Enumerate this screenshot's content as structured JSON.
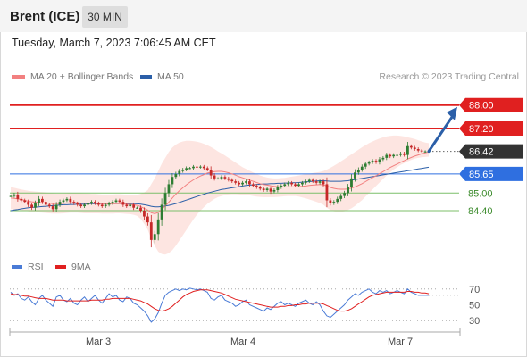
{
  "header": {
    "instrument": "Brent (ICE)",
    "timeframe": "30 MIN",
    "timestamp": "Tuesday, March 7, 2023 7:06:45 AM CET"
  },
  "legend": {
    "ma20": "MA 20 + Bollinger Bands",
    "ma50": "MA 50",
    "rsi": "RSI",
    "rsi_ma": "9MA",
    "copyright": "Research © 2023 Trading Central"
  },
  "colors": {
    "up": "#2e7d32",
    "down": "#c62828",
    "ma20": "#f28080",
    "ma50": "#2b5fa8",
    "resistance": "#e02020",
    "pivot": "#2f6fe0",
    "support": "#7cbf6a",
    "current": "#333333",
    "bands": "#fde0dc",
    "arrow": "#2b5fa8",
    "rsi": "#4a7bd6",
    "rsi_ma": "#e02020"
  },
  "chart_data": [
    {
      "type": "candlestick",
      "title": "",
      "ylim": [
        83.0,
        88.6
      ],
      "x_ticks": [
        "Mar 3",
        "Mar 4",
        "Mar 7"
      ],
      "price_levels": [
        {
          "role": "resistance",
          "label": "88.00",
          "value": 88.0
        },
        {
          "role": "resistance",
          "label": "87.20",
          "value": 87.2
        },
        {
          "role": "current",
          "label": "86.42",
          "value": 86.42
        },
        {
          "role": "pivot",
          "label": "85.65",
          "value": 85.65
        },
        {
          "role": "support",
          "label": "85.00",
          "value": 85.0
        },
        {
          "role": "support",
          "label": "84.40",
          "value": 84.4
        }
      ],
      "projection": {
        "from": 86.42,
        "to": 88.0
      },
      "close": [
        84.9,
        84.95,
        84.8,
        84.75,
        84.7,
        84.6,
        84.5,
        84.65,
        84.8,
        84.7,
        84.6,
        84.55,
        84.45,
        84.6,
        84.7,
        84.75,
        84.8,
        84.7,
        84.65,
        84.6,
        84.55,
        84.6,
        84.65,
        84.7,
        84.65,
        84.6,
        84.55,
        84.6,
        84.65,
        84.7,
        84.75,
        84.7,
        84.6,
        84.55,
        84.6,
        84.5,
        84.5,
        84.4,
        84.2,
        84.0,
        83.4,
        83.6,
        84.1,
        84.6,
        85.0,
        85.3,
        85.55,
        85.65,
        85.75,
        85.8,
        85.85,
        85.85,
        85.9,
        85.88,
        85.9,
        85.85,
        85.8,
        85.6,
        85.5,
        85.5,
        85.55,
        85.5,
        85.45,
        85.4,
        85.35,
        85.3,
        85.35,
        85.4,
        85.3,
        85.25,
        85.2,
        85.15,
        85.1,
        85.15,
        85.05,
        85.1,
        85.2,
        85.25,
        85.3,
        85.35,
        85.3,
        85.25,
        85.3,
        85.35,
        85.4,
        85.45,
        85.4,
        85.35,
        85.4,
        85.3,
        84.75,
        84.65,
        84.7,
        84.8,
        84.9,
        85.0,
        85.2,
        85.5,
        85.7,
        85.8,
        85.9,
        86.0,
        86.05,
        86.1,
        86.05,
        86.15,
        86.2,
        86.3,
        86.25,
        86.3,
        86.3,
        86.35,
        86.3,
        86.6,
        86.55,
        86.5,
        86.45,
        86.42,
        86.42,
        86.42
      ],
      "ma20": [
        84.83,
        84.82,
        84.8,
        84.78,
        84.75,
        84.72,
        84.7,
        84.69,
        84.68,
        84.67,
        84.66,
        84.65,
        84.64,
        84.64,
        84.64,
        84.65,
        84.66,
        84.67,
        84.67,
        84.67,
        84.66,
        84.65,
        84.65,
        84.65,
        84.65,
        84.64,
        84.63,
        84.63,
        84.63,
        84.63,
        84.64,
        84.64,
        84.63,
        84.62,
        84.61,
        84.6,
        84.58,
        84.54,
        84.48,
        84.42,
        84.33,
        84.3,
        84.34,
        84.44,
        84.56,
        84.69,
        84.83,
        84.96,
        85.08,
        85.18,
        85.28,
        85.37,
        85.45,
        85.52,
        85.58,
        85.63,
        85.68,
        85.71,
        85.73,
        85.74,
        85.74,
        85.72,
        85.69,
        85.65,
        85.61,
        85.56,
        85.52,
        85.48,
        85.44,
        85.4,
        85.36,
        85.32,
        85.29,
        85.27,
        85.25,
        85.23,
        85.22,
        85.21,
        85.21,
        85.21,
        85.21,
        85.21,
        85.22,
        85.23,
        85.24,
        85.26,
        85.27,
        85.28,
        85.29,
        85.28,
        85.24,
        85.19,
        85.16,
        85.14,
        85.13,
        85.13,
        85.14,
        85.17,
        85.21,
        85.26,
        85.32,
        85.39,
        85.46,
        85.53,
        85.59,
        85.66,
        85.73,
        85.8,
        85.87,
        85.93,
        85.99,
        86.05,
        86.1,
        86.16,
        86.21,
        86.26,
        86.3,
        86.34,
        86.37,
        86.4
      ],
      "ma50": [
        84.4,
        84.42,
        84.44,
        84.46,
        84.48,
        84.5,
        84.51,
        84.52,
        84.53,
        84.54,
        84.55,
        84.56,
        84.57,
        84.58,
        84.59,
        84.6,
        84.6,
        84.61,
        84.61,
        84.62,
        84.62,
        84.62,
        84.63,
        84.63,
        84.63,
        84.63,
        84.63,
        84.63,
        84.64,
        84.64,
        84.64,
        84.64,
        84.64,
        84.64,
        84.64,
        84.64,
        84.63,
        84.62,
        84.6,
        84.58,
        84.55,
        84.53,
        84.53,
        84.54,
        84.56,
        84.58,
        84.61,
        84.64,
        84.68,
        84.72,
        84.76,
        84.8,
        84.84,
        84.88,
        84.92,
        84.96,
        85.0,
        85.03,
        85.06,
        85.09,
        85.12,
        85.14,
        85.16,
        85.18,
        85.2,
        85.22,
        85.24,
        85.26,
        85.27,
        85.28,
        85.29,
        85.3,
        85.31,
        85.31,
        85.32,
        85.32,
        85.33,
        85.33,
        85.34,
        85.34,
        85.35,
        85.35,
        85.36,
        85.37,
        85.38,
        85.39,
        85.4,
        85.41,
        85.42,
        85.42,
        85.41,
        85.4,
        85.4,
        85.4,
        85.4,
        85.41,
        85.42,
        85.44,
        85.46,
        85.48,
        85.5,
        85.52,
        85.54,
        85.56,
        85.58,
        85.6,
        85.62,
        85.64,
        85.66,
        85.68,
        85.7,
        85.72,
        85.74,
        85.76,
        85.78,
        85.8,
        85.82,
        85.84,
        85.86,
        85.88
      ],
      "bb_upper": [
        85.2,
        85.18,
        85.15,
        85.12,
        85.1,
        85.08,
        85.06,
        85.05,
        85.04,
        85.03,
        85.02,
        85.0,
        84.99,
        84.98,
        84.98,
        84.98,
        84.99,
        85.0,
        85.0,
        85.0,
        84.99,
        84.98,
        84.98,
        84.97,
        84.97,
        84.96,
        84.95,
        84.95,
        84.95,
        84.95,
        84.96,
        84.96,
        84.95,
        84.94,
        84.93,
        84.93,
        84.94,
        84.97,
        85.02,
        85.1,
        85.3,
        85.5,
        85.75,
        86.0,
        86.2,
        86.4,
        86.55,
        86.65,
        86.72,
        86.76,
        86.78,
        86.78,
        86.77,
        86.75,
        86.72,
        86.68,
        86.63,
        86.57,
        86.5,
        86.42,
        86.35,
        86.28,
        86.2,
        86.12,
        86.04,
        85.96,
        85.88,
        85.82,
        85.76,
        85.7,
        85.65,
        85.6,
        85.56,
        85.53,
        85.51,
        85.5,
        85.5,
        85.51,
        85.52,
        85.54,
        85.56,
        85.58,
        85.6,
        85.62,
        85.64,
        85.66,
        85.68,
        85.7,
        85.72,
        85.75,
        85.8,
        85.86,
        85.93,
        86.0,
        86.08,
        86.16,
        86.24,
        86.32,
        86.4,
        86.48,
        86.56,
        86.63,
        86.7,
        86.76,
        86.81,
        86.86,
        86.9,
        86.93,
        86.95,
        86.96,
        86.96,
        86.95,
        86.93,
        86.9,
        86.87,
        86.84,
        86.8,
        86.76,
        86.72,
        86.7
      ],
      "bb_lower": [
        84.45,
        84.44,
        84.43,
        84.42,
        84.4,
        84.38,
        84.36,
        84.35,
        84.34,
        84.33,
        84.32,
        84.31,
        84.3,
        84.3,
        84.3,
        84.31,
        84.32,
        84.33,
        84.33,
        84.33,
        84.32,
        84.31,
        84.31,
        84.31,
        84.31,
        84.31,
        84.3,
        84.3,
        84.3,
        84.3,
        84.31,
        84.31,
        84.3,
        84.29,
        84.28,
        84.26,
        84.22,
        84.12,
        83.95,
        83.75,
        83.45,
        83.2,
        83.0,
        82.92,
        82.9,
        82.95,
        83.05,
        83.2,
        83.38,
        83.56,
        83.74,
        83.92,
        84.1,
        84.26,
        84.4,
        84.52,
        84.63,
        84.72,
        84.8,
        84.86,
        84.9,
        84.93,
        84.95,
        84.96,
        84.96,
        84.95,
        84.94,
        84.93,
        84.92,
        84.9,
        84.88,
        84.87,
        84.86,
        84.86,
        84.86,
        84.86,
        84.87,
        84.88,
        84.89,
        84.9,
        84.9,
        84.9,
        84.88,
        84.85,
        84.82,
        84.78,
        84.74,
        84.7,
        84.66,
        84.6,
        84.5,
        84.42,
        84.38,
        84.36,
        84.36,
        84.38,
        84.42,
        84.48,
        84.56,
        84.66,
        84.76,
        84.88,
        85.0,
        85.12,
        85.24,
        85.36,
        85.48,
        85.6,
        85.7,
        85.8,
        85.88,
        85.96,
        86.02,
        86.08,
        86.13,
        86.17,
        86.2,
        86.22,
        86.23,
        86.24
      ]
    },
    {
      "type": "line",
      "title": "",
      "ylim": [
        20,
        80
      ],
      "y_ticks": [
        70,
        50,
        30
      ],
      "series": [
        {
          "name": "RSI",
          "values": [
            66,
            62,
            64,
            58,
            56,
            60,
            54,
            50,
            58,
            62,
            56,
            52,
            48,
            60,
            62,
            56,
            54,
            58,
            52,
            50,
            56,
            60,
            54,
            58,
            62,
            56,
            52,
            58,
            64,
            60,
            62,
            56,
            54,
            60,
            58,
            52,
            50,
            46,
            42,
            36,
            28,
            32,
            40,
            52,
            62,
            66,
            68,
            70,
            68,
            70,
            69,
            71,
            70,
            69,
            70,
            68,
            66,
            58,
            56,
            60,
            62,
            56,
            54,
            52,
            48,
            50,
            54,
            56,
            50,
            48,
            46,
            44,
            42,
            46,
            44,
            48,
            52,
            54,
            50,
            52,
            50,
            48,
            52,
            54,
            56,
            52,
            50,
            54,
            50,
            42,
            36,
            34,
            38,
            42,
            46,
            50,
            56,
            60,
            64,
            62,
            66,
            68,
            70,
            66,
            64,
            68,
            66,
            68,
            64,
            66,
            68,
            66,
            64,
            70,
            66,
            64,
            62,
            62,
            62,
            62
          ]
        },
        {
          "name": "9MA",
          "values": [
            64,
            63,
            63,
            62,
            61,
            61,
            60,
            59,
            58,
            58,
            58,
            57,
            56,
            56,
            56,
            56,
            55,
            55,
            55,
            55,
            55,
            55,
            55,
            56,
            56,
            56,
            56,
            57,
            57,
            58,
            58,
            58,
            58,
            58,
            58,
            57,
            56,
            55,
            53,
            51,
            48,
            45,
            43,
            42,
            43,
            45,
            48,
            52,
            56,
            60,
            63,
            65,
            67,
            68,
            69,
            69,
            69,
            68,
            67,
            66,
            65,
            63,
            61,
            59,
            57,
            56,
            55,
            54,
            53,
            52,
            51,
            50,
            49,
            48,
            47,
            47,
            47,
            48,
            48,
            49,
            49,
            50,
            50,
            51,
            51,
            52,
            52,
            52,
            52,
            51,
            49,
            47,
            45,
            43,
            42,
            42,
            43,
            45,
            48,
            51,
            54,
            57,
            60,
            62,
            63,
            64,
            65,
            66,
            66,
            66,
            66,
            66,
            66,
            67,
            67,
            66,
            66,
            65,
            65,
            64
          ]
        }
      ]
    }
  ]
}
